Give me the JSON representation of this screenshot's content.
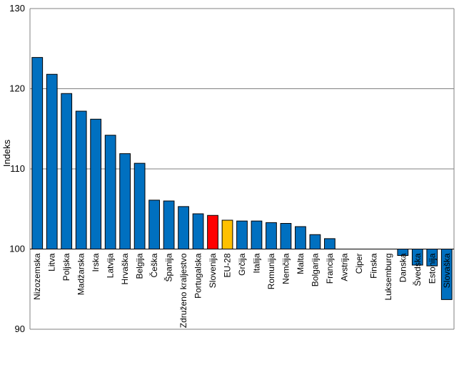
{
  "chart_data": {
    "type": "bar",
    "title": "",
    "xlabel": "",
    "ylabel": "Indeks",
    "ylim": [
      90,
      130
    ],
    "yticks": [
      90,
      100,
      110,
      120,
      130
    ],
    "baseline": 100,
    "grid": true,
    "legend": "none",
    "categories": [
      "Nizozemska",
      "Litva",
      "Poljska",
      "Madžarska",
      "Irska",
      "Latvija",
      "Hrvaška",
      "Belgija",
      "Češka",
      "Španija",
      "Združeno kraljestvo",
      "Portugalska",
      "Slovenija",
      "EU-28",
      "Grčija",
      "Italija",
      "Romunija",
      "Nemčija",
      "Malta",
      "Bolgarija",
      "Francija",
      "Avstrija",
      "Ciper",
      "Finska",
      "Luksemburg",
      "Danska",
      "Švedska",
      "Estonija",
      "Slovaška"
    ],
    "values": [
      123.9,
      121.8,
      119.4,
      117.2,
      116.2,
      114.2,
      111.9,
      110.7,
      106.1,
      106.0,
      105.3,
      104.4,
      104.2,
      103.6,
      103.5,
      103.5,
      103.3,
      103.2,
      102.8,
      101.8,
      101.3,
      100.0,
      100.0,
      100.0,
      100.0,
      99.2,
      98.0,
      97.9,
      93.7
    ],
    "colors": {
      "default": "#0070C0",
      "Slovenija": "#FF0000",
      "EU-28": "#FFC000",
      "gridline": "#808080",
      "bar_stroke": "#000000"
    }
  }
}
